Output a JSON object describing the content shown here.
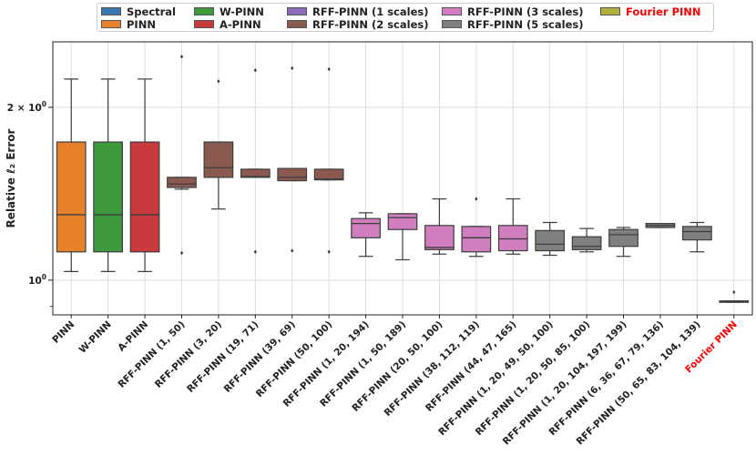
{
  "chart_data": {
    "type": "box",
    "title": "",
    "xlabel": "",
    "ylabel": "Relative ℓ₂ Error",
    "yscale": "log",
    "ylim": [
      0.87,
      2.6
    ],
    "yticks": [
      {
        "value": 2.0,
        "base": "2 × 10",
        "exp": "0"
      },
      {
        "value": 1.0,
        "base": "10",
        "exp": "0"
      }
    ],
    "legend_position": "top-center",
    "legend": [
      {
        "label": "Spectral",
        "color": "#3a76af"
      },
      {
        "label": "PINN",
        "color": "#e8822a"
      },
      {
        "label": "W-PINN",
        "color": "#3c9a3c"
      },
      {
        "label": "A-PINN",
        "color": "#c83a3d"
      },
      {
        "label": "RFF-PINN (1 scales)",
        "color": "#8d6bb8"
      },
      {
        "label": "RFF-PINN (2 scales)",
        "color": "#8a5a4f"
      },
      {
        "label": "RFF-PINN (3 scales)",
        "color": "#d07ec0"
      },
      {
        "label": "RFF-PINN (5 scales)",
        "color": "#7f7f7f"
      },
      {
        "label": "Fourier PINN",
        "color": "#b3b040",
        "highlight": true
      }
    ],
    "categories": [
      {
        "label": "PINN",
        "color": "#e8822a",
        "whislo": 1.035,
        "q1": 1.12,
        "med": 1.3,
        "q3": 1.74,
        "whishi": 2.24,
        "fliers": []
      },
      {
        "label": "W-PINN",
        "color": "#3c9a3c",
        "whislo": 1.035,
        "q1": 1.12,
        "med": 1.3,
        "q3": 1.74,
        "whishi": 2.24,
        "fliers": []
      },
      {
        "label": "A-PINN",
        "color": "#c83a3d",
        "whislo": 1.035,
        "q1": 1.12,
        "med": 1.3,
        "q3": 1.74,
        "whishi": 2.24,
        "fliers": []
      },
      {
        "label": "RFF-PINN (1, 50)",
        "color": "#8a5a4f",
        "whislo": 1.44,
        "q1": 1.45,
        "med": 1.47,
        "q3": 1.51,
        "whishi": 1.51,
        "fliers": [
          1.115,
          2.45
        ]
      },
      {
        "label": "RFF-PINN (3, 20)",
        "color": "#8a5a4f",
        "whislo": 1.33,
        "q1": 1.51,
        "med": 1.57,
        "q3": 1.74,
        "whishi": 1.74,
        "fliers": [
          2.22
        ]
      },
      {
        "label": "RFF-PINN (19, 71)",
        "color": "#8a5a4f",
        "whislo": 1.51,
        "q1": 1.51,
        "med": 1.515,
        "q3": 1.56,
        "whishi": 1.56,
        "fliers": [
          1.12,
          2.32
        ]
      },
      {
        "label": "RFF-PINN (39, 69)",
        "color": "#8a5a4f",
        "whislo": 1.49,
        "q1": 1.49,
        "med": 1.51,
        "q3": 1.565,
        "whishi": 1.565,
        "fliers": [
          1.125,
          2.34
        ]
      },
      {
        "label": "RFF-PINN (50, 100)",
        "color": "#8a5a4f",
        "whislo": 1.495,
        "q1": 1.495,
        "med": 1.5,
        "q3": 1.56,
        "whishi": 1.56,
        "fliers": [
          1.12,
          2.33
        ]
      },
      {
        "label": "RFF-PINN (1, 20, 194)",
        "color": "#d07ec0",
        "whislo": 1.1,
        "q1": 1.185,
        "med": 1.255,
        "q3": 1.28,
        "whishi": 1.31,
        "fliers": []
      },
      {
        "label": "RFF-PINN (1, 50, 189)",
        "color": "#d07ec0",
        "whislo": 1.085,
        "q1": 1.225,
        "med": 1.285,
        "q3": 1.305,
        "whishi": 1.305,
        "fliers": []
      },
      {
        "label": "RFF-PINN (20, 50, 100)",
        "color": "#d07ec0",
        "whislo": 1.11,
        "q1": 1.13,
        "med": 1.14,
        "q3": 1.245,
        "whishi": 1.385,
        "fliers": []
      },
      {
        "label": "RFF-PINN (38, 112, 119)",
        "color": "#d07ec0",
        "whislo": 1.1,
        "q1": 1.12,
        "med": 1.185,
        "q3": 1.24,
        "whishi": 1.24,
        "fliers": [
          1.385
        ]
      },
      {
        "label": "RFF-PINN (44, 47, 165)",
        "color": "#d07ec0",
        "whislo": 1.11,
        "q1": 1.125,
        "med": 1.18,
        "q3": 1.245,
        "whishi": 1.385,
        "fliers": []
      },
      {
        "label": "RFF-PINN (1, 20, 49, 50, 100)",
        "color": "#7f7f7f",
        "whislo": 1.105,
        "q1": 1.125,
        "med": 1.155,
        "q3": 1.22,
        "whishi": 1.26,
        "fliers": []
      },
      {
        "label": "RFF-PINN (1, 20, 50, 85, 100)",
        "color": "#7f7f7f",
        "whislo": 1.12,
        "q1": 1.13,
        "med": 1.145,
        "q3": 1.19,
        "whishi": 1.23,
        "fliers": []
      },
      {
        "label": "RFF-PINN (1, 20, 104, 197, 199)",
        "color": "#7f7f7f",
        "whislo": 1.1,
        "q1": 1.145,
        "med": 1.2,
        "q3": 1.225,
        "whishi": 1.235,
        "fliers": []
      },
      {
        "label": "RFF-PINN (6, 36, 67, 79, 136)",
        "color": "#7f7f7f",
        "whislo": 1.235,
        "q1": 1.235,
        "med": 1.245,
        "q3": 1.255,
        "whishi": 1.255,
        "fliers": []
      },
      {
        "label": "RFF-PINN (50, 65, 83, 104, 139)",
        "color": "#7f7f7f",
        "whislo": 1.12,
        "q1": 1.175,
        "med": 1.215,
        "q3": 1.24,
        "whishi": 1.26,
        "fliers": []
      },
      {
        "label": "Fourier PINN",
        "color": "#b3b040",
        "highlight": true,
        "whislo": 0.915,
        "q1": 0.915,
        "med": 0.917,
        "q3": 0.92,
        "whishi": 0.92,
        "fliers": [
          0.953
        ]
      }
    ]
  }
}
